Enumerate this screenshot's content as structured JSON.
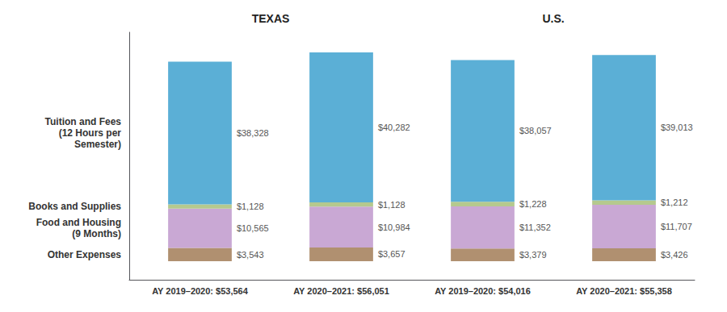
{
  "chart_data": {
    "type": "bar",
    "stacked": true,
    "data_labels": true,
    "tick_labels": "x",
    "grid": false,
    "categories": [
      "AY 2019–2020: $53,564",
      "AY 2020–2021: $56,051",
      "AY 2019–2020: $54,016",
      "AY 2020–2021: $55,358"
    ],
    "series": [
      {
        "name": "Other Expenses",
        "color": "#b09070",
        "values": [
          3543,
          3657,
          3379,
          3426
        ],
        "value_labels": [
          "$3,543",
          "$3,657",
          "$3,379",
          "$3,426"
        ]
      },
      {
        "name": "Food and Housing\n(9 Months)",
        "color": "#c9a8d4",
        "values": [
          10565,
          10984,
          11352,
          11707
        ],
        "value_labels": [
          "$10,565",
          "$10,984",
          "$11,352",
          "$11,707"
        ]
      },
      {
        "name": "Books and Supplies",
        "color": "#b5c98e",
        "values": [
          1128,
          1128,
          1228,
          1212
        ],
        "value_labels": [
          "$1,128",
          "$1,128",
          "$1,228",
          "$1,212"
        ]
      },
      {
        "name": "Tuition and Fees\n(12 Hours per\nSemester)",
        "color": "#5bafd6",
        "values": [
          38328,
          40282,
          38057,
          39013
        ],
        "value_labels": [
          "$38,328",
          "$40,282",
          "$38,057",
          "$39,013"
        ]
      }
    ],
    "ylim": [
      -5000,
      61480
    ],
    "annotations": [
      {
        "text": "TEXAS",
        "over": [
          "AY 2019–2020: $53,564",
          "AY 2020–2021: $56,051"
        ]
      },
      {
        "text": "U.S.",
        "over": [
          "AY 2019–2020: $54,016",
          "AY 2020–2021: $55,358"
        ]
      }
    ]
  }
}
